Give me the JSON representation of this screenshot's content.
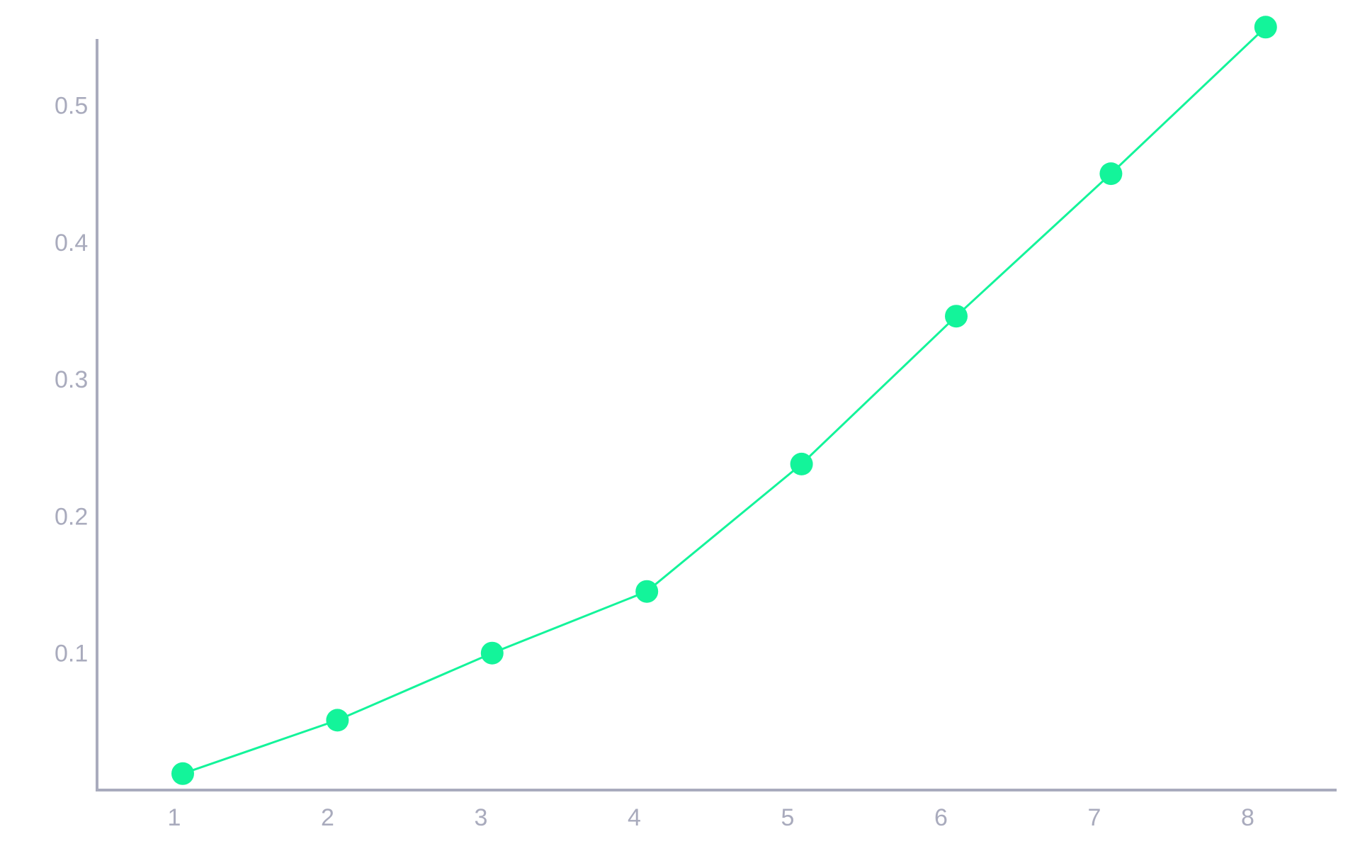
{
  "chart_data": {
    "type": "line",
    "x": [
      1,
      2,
      3,
      4,
      5,
      6,
      7,
      8
    ],
    "series": [
      {
        "values": [
          0.012,
          0.051,
          0.1,
          0.145,
          0.238,
          0.346,
          0.45,
          0.557
        ]
      }
    ],
    "x_ticks": [
      "1",
      "2",
      "3",
      "4",
      "5",
      "6",
      "7",
      "8"
    ],
    "y_ticks": [
      "0.1",
      "0.2",
      "0.3",
      "0.4",
      "0.5"
    ],
    "y_tick_values": [
      0.1,
      0.2,
      0.3,
      0.4,
      0.5
    ],
    "title": "",
    "xlabel": "",
    "ylabel": "",
    "xlim": [
      0.45,
      8.55
    ],
    "ylim": [
      0,
      0.55
    ],
    "grid": false,
    "legend": "none",
    "colors": {
      "series": "#13f49a",
      "axis": "#a9abbd",
      "tick_label": "#a9abbd"
    }
  }
}
